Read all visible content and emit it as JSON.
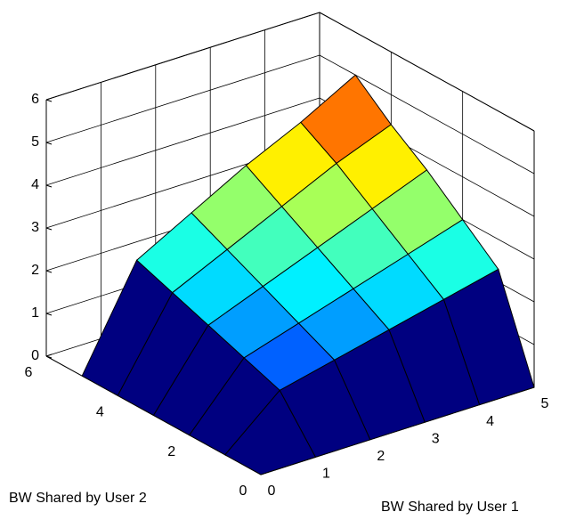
{
  "chart_data": {
    "type": "surface",
    "xlabel": "BW Shared by User 1",
    "ylabel": "BW Shared by User 2",
    "x": [
      0,
      1,
      2,
      3,
      4,
      5
    ],
    "y": [
      0,
      1,
      2,
      3,
      4,
      5
    ],
    "z": [
      [
        0,
        0,
        0,
        0,
        0,
        0
      ],
      [
        0,
        1.1,
        1.4,
        1.7,
        2.0,
        2.3
      ],
      [
        0,
        1.4,
        1.8,
        2.2,
        2.6,
        3.0
      ],
      [
        0,
        1.7,
        2.2,
        2.7,
        3.2,
        3.7
      ],
      [
        0,
        2.0,
        2.6,
        3.2,
        3.8,
        4.3
      ],
      [
        0,
        2.3,
        3.0,
        3.7,
        4.3,
        5.0
      ]
    ],
    "colormap": "jet",
    "edgecolor": "#000000",
    "xlim": [
      0,
      5
    ],
    "xticks": [
      0,
      1,
      2,
      3,
      4,
      5
    ],
    "ylim": [
      0,
      6
    ],
    "yticks": [
      0,
      2,
      4,
      6
    ],
    "zlim": [
      0,
      6
    ],
    "zticks": [
      0,
      1,
      2,
      3,
      4,
      5,
      6
    ],
    "grid": true
  }
}
